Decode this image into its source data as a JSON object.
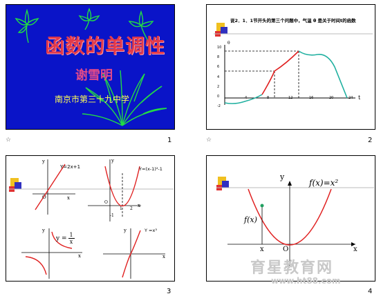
{
  "slides": [
    {
      "number": "1",
      "title": "函数的单调性",
      "author": "谢雪明",
      "school": "南京市第三十九中学"
    },
    {
      "number": "2",
      "text": "说2．1．1节开头的第三个问题中，气温 θ 是关于时间t的函数",
      "axis_y_label": "θ",
      "axis_x_label": "t",
      "y_ticks": [
        "10",
        "8",
        "6",
        "4",
        "2",
        "0",
        "-2"
      ],
      "x_ticks": [
        "4",
        "8",
        "12",
        "16",
        "20",
        "24"
      ]
    },
    {
      "number": "3",
      "eq1": "Y=2x+1",
      "eq2": "Y=(x-1)²-1",
      "eq3_prefix": "y =",
      "eq3_num": "1",
      "eq3_den": "x",
      "eq4": "Y =x³",
      "y": "y",
      "x": "x",
      "o": "O",
      "tick1": "1",
      "tick2": "2",
      "tickm1": "-1"
    },
    {
      "number": "4",
      "eq": "f(x)=x²",
      "fx": "f(x)",
      "x_label": "x",
      "y_label": "y",
      "o_label": "O",
      "x_mark": "x"
    }
  ],
  "watermark": {
    "text": "育星教育网",
    "url": "www.ht88.com"
  },
  "colors": {
    "blue_bg": "#0a14c8",
    "title_red": "#e23a4a",
    "curve_red": "#e02020",
    "curve_teal": "#20b0a0",
    "plant_green": "#22dd44",
    "school_yellow": "#ffff55"
  }
}
